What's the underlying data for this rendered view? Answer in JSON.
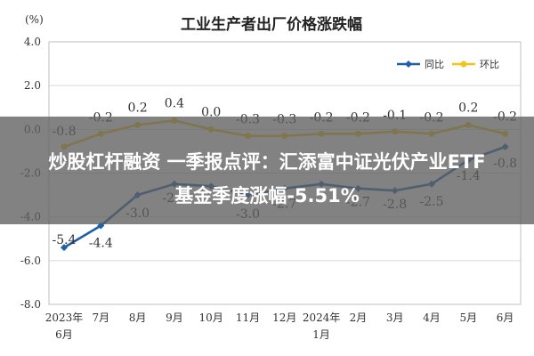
{
  "chart_data": {
    "type": "line",
    "title": "工业生产者出厂价格涨跌幅",
    "unit_label": "(%)",
    "categories": [
      [
        "2023年",
        "6月"
      ],
      [
        "7月"
      ],
      [
        "8月"
      ],
      [
        "9月"
      ],
      [
        "10月"
      ],
      [
        "11月"
      ],
      [
        "12月"
      ],
      [
        "2024年",
        "1月"
      ],
      [
        "2月"
      ],
      [
        "3月"
      ],
      [
        "4月"
      ],
      [
        "5月"
      ],
      [
        "6月"
      ]
    ],
    "ylim": [
      -8.0,
      4.0
    ],
    "yticks": [
      "4.0",
      "2.0",
      "0.0",
      "-2.0",
      "-4.0",
      "-6.0",
      "-8.0"
    ],
    "grid": true,
    "legend_position": "top-right",
    "series": [
      {
        "name": "同比",
        "color": "#1f5fa8",
        "values": [
          -5.4,
          -4.4,
          -3.0,
          -2.5,
          -2.6,
          -3.0,
          -2.7,
          -2.5,
          -2.7,
          -2.8,
          -2.5,
          -1.4,
          -0.8
        ],
        "labels": [
          "-5.4",
          "-4.4",
          "-3.0",
          "-2.5",
          "",
          "-3.0",
          "-2.7",
          "",
          "-2.7",
          "-2.8",
          "-2.5",
          "-1.4",
          "-0.8"
        ]
      },
      {
        "name": "环比",
        "color": "#f2c318",
        "values": [
          -0.8,
          -0.2,
          0.2,
          0.4,
          0.0,
          -0.3,
          -0.3,
          -0.2,
          -0.2,
          -0.1,
          -0.2,
          0.2,
          -0.2
        ],
        "labels": [
          "-0.8",
          "-0.2",
          "0.2",
          "0.4",
          "0.0",
          "-0.3",
          "-0.3",
          "-0.2",
          "-0.2",
          "-0.1",
          "-0.2",
          "0.2",
          "-0.2"
        ]
      }
    ]
  },
  "overlay": {
    "line1": "炒股杠杆融资 一季报点评：汇添富中证光伏产业ETF",
    "line2": "基金季度涨幅-5.51%"
  }
}
